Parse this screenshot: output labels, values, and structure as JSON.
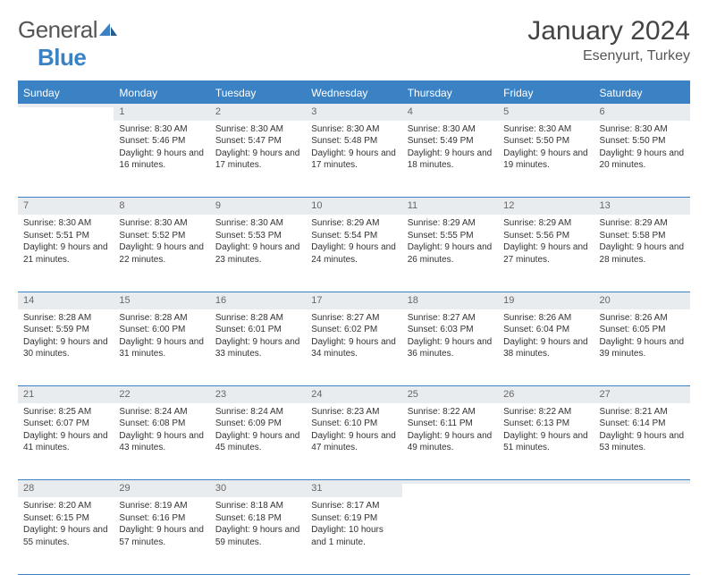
{
  "logo": {
    "text1": "General",
    "text2": "Blue",
    "icon_color": "#3b82c4"
  },
  "title": "January 2024",
  "location": "Esenyurt, Turkey",
  "colors": {
    "header_bg": "#3b82c4",
    "daynum_bg": "#e9ecef",
    "border": "#3b82c4"
  },
  "day_headers": [
    "Sunday",
    "Monday",
    "Tuesday",
    "Wednesday",
    "Thursday",
    "Friday",
    "Saturday"
  ],
  "weeks": [
    {
      "days": [
        {
          "num": "",
          "lines": []
        },
        {
          "num": "1",
          "lines": [
            "Sunrise: 8:30 AM",
            "Sunset: 5:46 PM",
            "Daylight: 9 hours and 16 minutes."
          ]
        },
        {
          "num": "2",
          "lines": [
            "Sunrise: 8:30 AM",
            "Sunset: 5:47 PM",
            "Daylight: 9 hours and 17 minutes."
          ]
        },
        {
          "num": "3",
          "lines": [
            "Sunrise: 8:30 AM",
            "Sunset: 5:48 PM",
            "Daylight: 9 hours and 17 minutes."
          ]
        },
        {
          "num": "4",
          "lines": [
            "Sunrise: 8:30 AM",
            "Sunset: 5:49 PM",
            "Daylight: 9 hours and 18 minutes."
          ]
        },
        {
          "num": "5",
          "lines": [
            "Sunrise: 8:30 AM",
            "Sunset: 5:50 PM",
            "Daylight: 9 hours and 19 minutes."
          ]
        },
        {
          "num": "6",
          "lines": [
            "Sunrise: 8:30 AM",
            "Sunset: 5:50 PM",
            "Daylight: 9 hours and 20 minutes."
          ]
        }
      ]
    },
    {
      "days": [
        {
          "num": "7",
          "lines": [
            "Sunrise: 8:30 AM",
            "Sunset: 5:51 PM",
            "Daylight: 9 hours and 21 minutes."
          ]
        },
        {
          "num": "8",
          "lines": [
            "Sunrise: 8:30 AM",
            "Sunset: 5:52 PM",
            "Daylight: 9 hours and 22 minutes."
          ]
        },
        {
          "num": "9",
          "lines": [
            "Sunrise: 8:30 AM",
            "Sunset: 5:53 PM",
            "Daylight: 9 hours and 23 minutes."
          ]
        },
        {
          "num": "10",
          "lines": [
            "Sunrise: 8:29 AM",
            "Sunset: 5:54 PM",
            "Daylight: 9 hours and 24 minutes."
          ]
        },
        {
          "num": "11",
          "lines": [
            "Sunrise: 8:29 AM",
            "Sunset: 5:55 PM",
            "Daylight: 9 hours and 26 minutes."
          ]
        },
        {
          "num": "12",
          "lines": [
            "Sunrise: 8:29 AM",
            "Sunset: 5:56 PM",
            "Daylight: 9 hours and 27 minutes."
          ]
        },
        {
          "num": "13",
          "lines": [
            "Sunrise: 8:29 AM",
            "Sunset: 5:58 PM",
            "Daylight: 9 hours and 28 minutes."
          ]
        }
      ]
    },
    {
      "days": [
        {
          "num": "14",
          "lines": [
            "Sunrise: 8:28 AM",
            "Sunset: 5:59 PM",
            "Daylight: 9 hours and 30 minutes."
          ]
        },
        {
          "num": "15",
          "lines": [
            "Sunrise: 8:28 AM",
            "Sunset: 6:00 PM",
            "Daylight: 9 hours and 31 minutes."
          ]
        },
        {
          "num": "16",
          "lines": [
            "Sunrise: 8:28 AM",
            "Sunset: 6:01 PM",
            "Daylight: 9 hours and 33 minutes."
          ]
        },
        {
          "num": "17",
          "lines": [
            "Sunrise: 8:27 AM",
            "Sunset: 6:02 PM",
            "Daylight: 9 hours and 34 minutes."
          ]
        },
        {
          "num": "18",
          "lines": [
            "Sunrise: 8:27 AM",
            "Sunset: 6:03 PM",
            "Daylight: 9 hours and 36 minutes."
          ]
        },
        {
          "num": "19",
          "lines": [
            "Sunrise: 8:26 AM",
            "Sunset: 6:04 PM",
            "Daylight: 9 hours and 38 minutes."
          ]
        },
        {
          "num": "20",
          "lines": [
            "Sunrise: 8:26 AM",
            "Sunset: 6:05 PM",
            "Daylight: 9 hours and 39 minutes."
          ]
        }
      ]
    },
    {
      "days": [
        {
          "num": "21",
          "lines": [
            "Sunrise: 8:25 AM",
            "Sunset: 6:07 PM",
            "Daylight: 9 hours and 41 minutes."
          ]
        },
        {
          "num": "22",
          "lines": [
            "Sunrise: 8:24 AM",
            "Sunset: 6:08 PM",
            "Daylight: 9 hours and 43 minutes."
          ]
        },
        {
          "num": "23",
          "lines": [
            "Sunrise: 8:24 AM",
            "Sunset: 6:09 PM",
            "Daylight: 9 hours and 45 minutes."
          ]
        },
        {
          "num": "24",
          "lines": [
            "Sunrise: 8:23 AM",
            "Sunset: 6:10 PM",
            "Daylight: 9 hours and 47 minutes."
          ]
        },
        {
          "num": "25",
          "lines": [
            "Sunrise: 8:22 AM",
            "Sunset: 6:11 PM",
            "Daylight: 9 hours and 49 minutes."
          ]
        },
        {
          "num": "26",
          "lines": [
            "Sunrise: 8:22 AM",
            "Sunset: 6:13 PM",
            "Daylight: 9 hours and 51 minutes."
          ]
        },
        {
          "num": "27",
          "lines": [
            "Sunrise: 8:21 AM",
            "Sunset: 6:14 PM",
            "Daylight: 9 hours and 53 minutes."
          ]
        }
      ]
    },
    {
      "days": [
        {
          "num": "28",
          "lines": [
            "Sunrise: 8:20 AM",
            "Sunset: 6:15 PM",
            "Daylight: 9 hours and 55 minutes."
          ]
        },
        {
          "num": "29",
          "lines": [
            "Sunrise: 8:19 AM",
            "Sunset: 6:16 PM",
            "Daylight: 9 hours and 57 minutes."
          ]
        },
        {
          "num": "30",
          "lines": [
            "Sunrise: 8:18 AM",
            "Sunset: 6:18 PM",
            "Daylight: 9 hours and 59 minutes."
          ]
        },
        {
          "num": "31",
          "lines": [
            "Sunrise: 8:17 AM",
            "Sunset: 6:19 PM",
            "Daylight: 10 hours and 1 minute."
          ]
        },
        {
          "num": "",
          "lines": []
        },
        {
          "num": "",
          "lines": []
        },
        {
          "num": "",
          "lines": []
        }
      ]
    }
  ]
}
